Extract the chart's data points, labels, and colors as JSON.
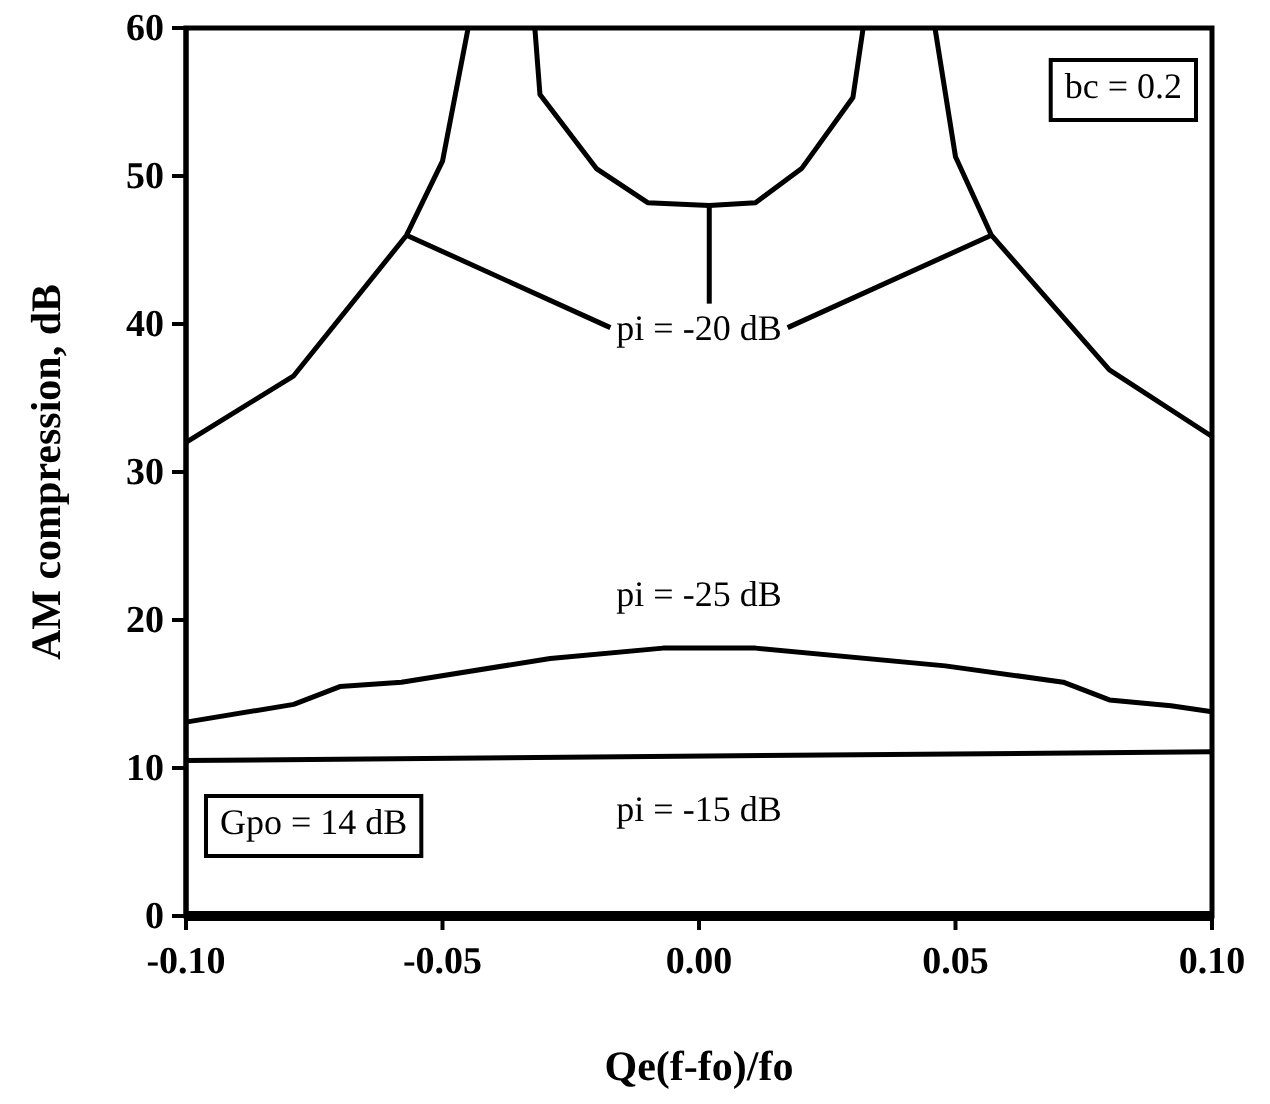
{
  "chart_data": {
    "type": "line",
    "xlabel": "Qe(f-fo)/fo",
    "ylabel": "AM  compression,  dB",
    "xlim": [
      -0.1,
      0.1
    ],
    "xticks": [
      {
        "value": -0.1,
        "label": "-0.10"
      },
      {
        "value": -0.05,
        "label": "-0.05"
      },
      {
        "value": 0,
        "label": "0.00"
      },
      {
        "value": 0.05,
        "label": "0.05"
      },
      {
        "value": 0.1,
        "label": "0.10"
      }
    ],
    "ylim": [
      0,
      60
    ],
    "yticks": [
      0,
      10,
      20,
      30,
      40,
      50,
      60
    ],
    "grid": false,
    "marker": "none",
    "line_style": "solid",
    "series": [
      {
        "name": "pi = -20 dB",
        "color": "#000000",
        "x": [
          -0.1,
          -0.079,
          -0.057,
          -0.05,
          -0.045,
          -0.038,
          -0.032,
          -0.031,
          -0.02,
          -0.01,
          0.002,
          0.011,
          0.02,
          0.03,
          0.032,
          0.038,
          0.046,
          0.05,
          0.057,
          0.08,
          0.1
        ],
        "values": [
          32,
          36.5,
          46,
          51,
          60,
          null,
          60,
          55.5,
          50.5,
          48.2,
          48,
          48.2,
          50.5,
          55.3,
          60,
          null,
          60,
          51.3,
          46,
          36.9,
          32.4
        ]
      },
      {
        "name": "pi = -25 dB",
        "color": "#000000",
        "x": [
          -0.1,
          -0.079,
          -0.07,
          -0.058,
          -0.029,
          -0.007,
          0.011,
          0.048,
          0.071,
          0.08,
          0.092,
          0.1
        ],
        "values": [
          13.1,
          14.3,
          15.5,
          15.8,
          17.4,
          18.1,
          18.1,
          16.9,
          15.8,
          14.6,
          14.2,
          13.8
        ]
      },
      {
        "name": "pi = -15 dB",
        "color": "#000000",
        "x": [
          -0.1,
          0.1
        ],
        "values": [
          10.5,
          11.1
        ]
      }
    ],
    "annotations": [
      "bc = 0.2",
      "Gpo = 14 dB"
    ]
  }
}
